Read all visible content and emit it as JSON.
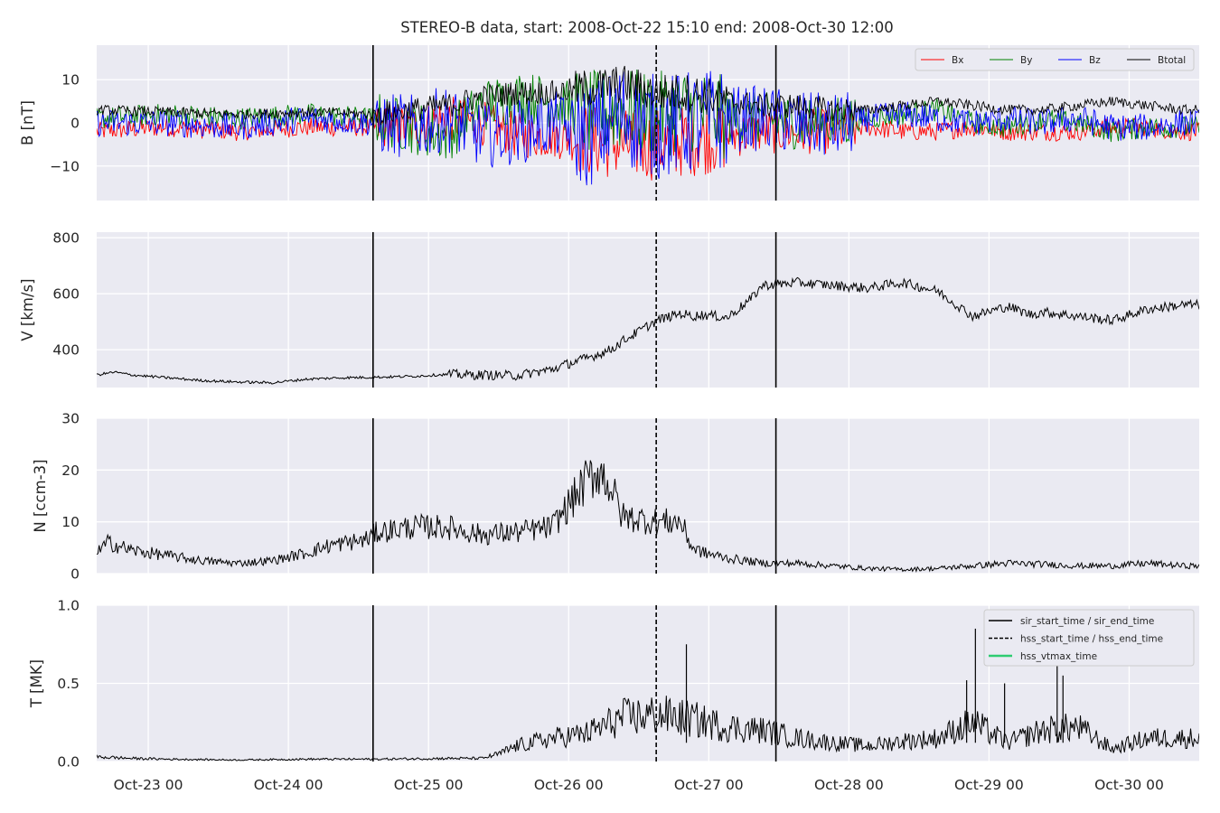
{
  "title": "STEREO-B data, start: 2008-Oct-22 15:10  end: 2008-Oct-30 12:00",
  "x_tick_labels": [
    "Oct-23 00",
    "Oct-24 00",
    "Oct-25 00",
    "Oct-26 00",
    "Oct-27 00",
    "Oct-28 00",
    "Oct-29 00",
    "Oct-30 00"
  ],
  "colors": {
    "axes_bg": "#eaeaf2",
    "grid": "#ffffff",
    "Bx": "#ff0000",
    "By": "#008000",
    "Bz": "#0000ff",
    "Btotal": "#000000",
    "hss_vtmax": "#2ecc71"
  },
  "chart_data": [
    {
      "type": "line",
      "panel": "B",
      "ylabel": "B [nT]",
      "xlim": [
        "2008-10-22T15:10",
        "2008-10-30T12:00"
      ],
      "ylim": [
        -18,
        18
      ],
      "yticks": [
        -10,
        0,
        10
      ],
      "ytick_labels": [
        "−10",
        "0",
        "10"
      ],
      "grid": true,
      "legend": {
        "placement": "top-right",
        "entries": [
          "Bx",
          "By",
          "Bz",
          "Btotal"
        ],
        "ncol": 4
      },
      "series": [
        {
          "name": "Bx",
          "x_hours": [
            0,
            12,
            24,
            36,
            48,
            54,
            60,
            66,
            72,
            78,
            84,
            90,
            96,
            102,
            108,
            114,
            120,
            126,
            132,
            138,
            144,
            150,
            156,
            162,
            168,
            174,
            180,
            186
          ],
          "values": [
            -2,
            -1,
            -2,
            -1,
            -1,
            -1,
            1,
            0,
            -3,
            -3,
            -4,
            -5,
            -5,
            -4,
            -3,
            -2,
            -2,
            -2,
            -1,
            -2,
            -2,
            -1,
            -2,
            -2,
            -2,
            -1,
            -1,
            -2
          ]
        },
        {
          "name": "By",
          "x_hours": [
            0,
            12,
            24,
            36,
            48,
            54,
            60,
            66,
            72,
            78,
            84,
            90,
            96,
            102,
            108,
            114,
            120,
            126,
            132,
            138,
            144,
            150,
            156,
            162,
            168,
            174,
            180,
            186
          ],
          "values": [
            1,
            2,
            1,
            2,
            1,
            -1,
            -3,
            4,
            6,
            5,
            2,
            3,
            2,
            3,
            1,
            1,
            0,
            0,
            1,
            2,
            3,
            0,
            -1,
            1,
            0,
            -2,
            -1,
            -1
          ]
        },
        {
          "name": "Bz",
          "x_hours": [
            0,
            12,
            24,
            36,
            48,
            54,
            60,
            66,
            72,
            78,
            84,
            90,
            96,
            102,
            108,
            114,
            120,
            126,
            132,
            138,
            144,
            150,
            156,
            162,
            168,
            174,
            180,
            186
          ],
          "values": [
            0,
            0,
            -1,
            1,
            0,
            -1,
            1,
            -3,
            -2,
            0,
            -3,
            2,
            -1,
            0,
            1,
            1,
            0,
            -1,
            1,
            2,
            1,
            0,
            1,
            0,
            1,
            -1,
            -1,
            0
          ]
        },
        {
          "name": "Btotal",
          "x_hours": [
            0,
            12,
            24,
            36,
            48,
            54,
            60,
            66,
            72,
            78,
            84,
            90,
            96,
            102,
            108,
            114,
            120,
            126,
            132,
            138,
            144,
            150,
            156,
            162,
            168,
            174,
            180,
            186
          ],
          "values": [
            3,
            2.5,
            2,
            2.5,
            2,
            3,
            4,
            6,
            7,
            7,
            8,
            9,
            7,
            7,
            5,
            4,
            4,
            3,
            3,
            4,
            5,
            4,
            3,
            3,
            4,
            5,
            4,
            3
          ]
        }
      ]
    },
    {
      "type": "line",
      "panel": "V",
      "ylabel": "V [km/s]",
      "xlim": [
        "2008-10-22T15:10",
        "2008-10-30T12:00"
      ],
      "ylim": [
        265,
        820
      ],
      "yticks": [
        400,
        600,
        800
      ],
      "ytick_labels": [
        "400",
        "600",
        "800"
      ],
      "grid": true,
      "series": [
        {
          "x_hours": [
            0,
            3,
            6,
            12,
            18,
            24,
            30,
            36,
            42,
            48,
            54,
            60,
            66,
            72,
            78,
            80,
            84,
            88,
            90,
            96,
            100,
            102,
            104,
            108,
            112,
            114,
            120,
            126,
            132,
            138,
            144,
            150,
            156,
            160,
            162,
            168,
            174,
            180,
            186
          ],
          "values": [
            310,
            320,
            310,
            300,
            290,
            285,
            282,
            295,
            300,
            302,
            305,
            312,
            310,
            308,
            330,
            345,
            370,
            400,
            430,
            505,
            530,
            520,
            525,
            515,
            580,
            630,
            640,
            630,
            620,
            640,
            610,
            520,
            555,
            525,
            535,
            520,
            505,
            545,
            560
          ]
        }
      ]
    },
    {
      "type": "line",
      "panel": "N",
      "ylabel": "N [ccm-3]",
      "xlim": [
        "2008-10-22T15:10",
        "2008-10-30T12:00"
      ],
      "ylim": [
        0,
        30
      ],
      "yticks": [
        0,
        10,
        20,
        30
      ],
      "ytick_labels": [
        "0",
        "10",
        "20",
        "30"
      ],
      "grid": true,
      "series": [
        {
          "x_hours": [
            0,
            2,
            6,
            12,
            18,
            24,
            30,
            36,
            40,
            46,
            48,
            54,
            60,
            66,
            72,
            78,
            84,
            86,
            88,
            90,
            96,
            100,
            102,
            104,
            108,
            114,
            120,
            126,
            132,
            138,
            144,
            150,
            156,
            162,
            168,
            174,
            180,
            186
          ],
          "values": [
            4,
            6,
            4.5,
            3.5,
            2.5,
            2,
            2.5,
            4,
            5.5,
            6.5,
            8,
            9,
            9,
            7.5,
            8,
            9,
            18,
            20,
            17,
            11,
            10,
            10,
            5,
            4,
            3,
            2,
            2,
            1.5,
            1,
            0.8,
            1,
            1.5,
            2,
            1.8,
            1.5,
            1.5,
            2,
            1.5
          ]
        }
      ]
    },
    {
      "type": "line",
      "panel": "T",
      "ylabel": "T [MK]",
      "xlim": [
        "2008-10-22T15:10",
        "2008-10-30T12:00"
      ],
      "ylim": [
        0,
        1.0
      ],
      "yticks": [
        0.0,
        0.5,
        1.0
      ],
      "ytick_labels": [
        "0.0",
        "0.5",
        "1.0"
      ],
      "grid": true,
      "legend": {
        "placement": "top-right",
        "entries": [
          "sir_start_time / sir_end_time",
          "hss_start_time / hss_end_time",
          "hss_vtmax_time"
        ]
      },
      "series": [
        {
          "x_hours": [
            0,
            6,
            12,
            24,
            36,
            48,
            60,
            66,
            69,
            72,
            78,
            84,
            90,
            96,
            102,
            108,
            114,
            120,
            126,
            132,
            138,
            144,
            150,
            156,
            162,
            168,
            174,
            180,
            186
          ],
          "values": [
            0.03,
            0.02,
            0.015,
            0.01,
            0.015,
            0.015,
            0.02,
            0.02,
            0.05,
            0.1,
            0.15,
            0.18,
            0.28,
            0.3,
            0.27,
            0.22,
            0.2,
            0.15,
            0.12,
            0.1,
            0.13,
            0.15,
            0.25,
            0.12,
            0.2,
            0.22,
            0.08,
            0.15,
            0.15
          ]
        }
      ],
      "spikes": [
        {
          "x_hour": 101,
          "value": 0.75
        },
        {
          "x_hour": 149,
          "value": 0.52
        },
        {
          "x_hour": 150.5,
          "value": 0.85
        },
        {
          "x_hour": 155.5,
          "value": 0.5
        },
        {
          "x_hour": 164.5,
          "value": 0.72
        },
        {
          "x_hour": 165.5,
          "value": 0.55
        }
      ]
    }
  ],
  "event_lines": [
    {
      "name": "sir_start_time",
      "x": "2008-10-24T14:30",
      "style": "solid"
    },
    {
      "name": "hss_start_time",
      "x": "2008-10-26T15:00",
      "style": "dashed"
    },
    {
      "name": "sir_end_time",
      "x": "2008-10-27T11:30",
      "style": "solid"
    }
  ]
}
